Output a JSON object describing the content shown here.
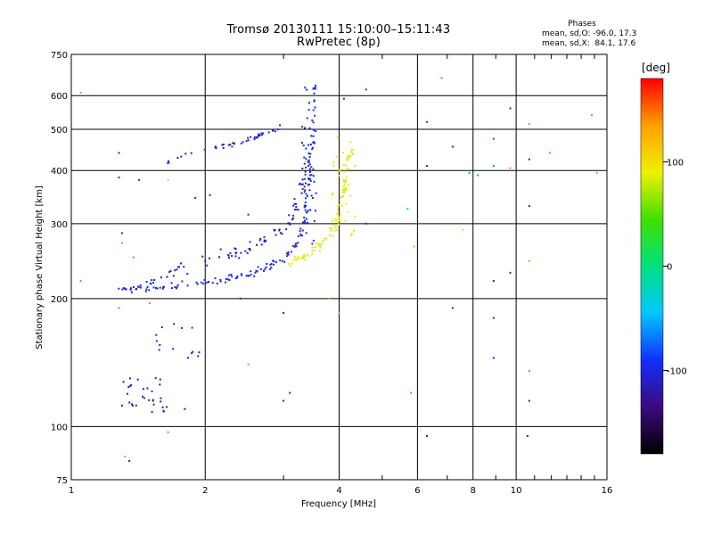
{
  "header": {
    "title_line1": "Tromsø 20130111 15:10:00–15:11:43",
    "title_line2": "RwPretec (8p)",
    "stats_title": "Phases",
    "stats_line1": "mean, sd,O: -96.0, 17.3",
    "stats_line2": "mean, sd,X:  84.1, 17.6"
  },
  "colorbar": {
    "title": "[deg]",
    "ticks": [
      "100",
      "0",
      "-100"
    ],
    "colors": [
      "#000000",
      "#3c0a7c",
      "#1030ff",
      "#00c8ff",
      "#00e080",
      "#40e000",
      "#f0f000",
      "#ffa000",
      "#ff0000"
    ]
  },
  "chart_data": {
    "type": "scatter",
    "xlabel": "Frequency [MHz]",
    "ylabel": "Stationary phase Virtual Height [km]",
    "x_scale": "log",
    "y_scale": "log",
    "xlim": [
      1,
      16
    ],
    "ylim": [
      75,
      750
    ],
    "grid": true,
    "x_ticks": [
      1,
      2,
      4,
      6,
      8,
      10,
      16
    ],
    "x_tick_labels": [
      "1",
      "2",
      "4",
      "6",
      "8",
      "10",
      "16"
    ],
    "x_minor_ticks": [
      3,
      5,
      7,
      9,
      11,
      12,
      13,
      14,
      15
    ],
    "y_ticks": [
      75,
      100,
      200,
      300,
      400,
      500,
      600,
      750
    ],
    "y_tick_labels": [
      "75",
      "100",
      "200",
      "300",
      "400",
      "500",
      "600",
      "750"
    ],
    "color_range_deg": [
      -180,
      180
    ],
    "colorbar_ticks": [
      100,
      0,
      -100
    ],
    "traces": [
      {
        "mode": "O",
        "phase": -100,
        "phase_jitter": 12,
        "count": 140,
        "kind": "curve",
        "points": [
          [
            1.3,
            210
          ],
          [
            1.5,
            212
          ],
          [
            1.7,
            214
          ],
          [
            2.0,
            218
          ],
          [
            2.3,
            223
          ],
          [
            2.6,
            230
          ],
          [
            2.9,
            242
          ],
          [
            3.1,
            255
          ],
          [
            3.25,
            275
          ],
          [
            3.35,
            310
          ],
          [
            3.42,
            380
          ],
          [
            3.46,
            470
          ],
          [
            3.5,
            620
          ]
        ],
        "x_spread": 0.02,
        "y_spread": 0.03
      },
      {
        "mode": "O",
        "phase": -110,
        "phase_jitter": 12,
        "count": 90,
        "kind": "curve",
        "points": [
          [
            1.45,
            215
          ],
          [
            1.7,
            232
          ],
          [
            2.0,
            245
          ],
          [
            2.3,
            255
          ],
          [
            2.6,
            265
          ],
          [
            2.9,
            285
          ],
          [
            3.1,
            305
          ],
          [
            3.25,
            335
          ],
          [
            3.35,
            380
          ],
          [
            3.4,
            450
          ]
        ],
        "x_spread": 0.03,
        "y_spread": 0.05
      },
      {
        "mode": "O",
        "phase": -100,
        "phase_jitter": 10,
        "count": 60,
        "kind": "band",
        "x": [
          3.28,
          3.55
        ],
        "y": [
          260,
          640
        ]
      },
      {
        "mode": "O",
        "phase": -105,
        "phase_jitter": 10,
        "count": 45,
        "kind": "curve",
        "points": [
          [
            1.65,
            420
          ],
          [
            1.8,
            440
          ],
          [
            2.0,
            450
          ],
          [
            2.2,
            455
          ],
          [
            2.4,
            465
          ],
          [
            2.6,
            480
          ],
          [
            2.8,
            495
          ],
          [
            2.95,
            505
          ]
        ],
        "x_spread": 0.02,
        "y_spread": 0.02
      },
      {
        "mode": "X",
        "phase": 85,
        "phase_jitter": 12,
        "count": 80,
        "kind": "curve",
        "points": [
          [
            3.0,
            243
          ],
          [
            3.2,
            248
          ],
          [
            3.4,
            255
          ],
          [
            3.6,
            265
          ],
          [
            3.8,
            280
          ],
          [
            3.95,
            300
          ],
          [
            4.05,
            330
          ],
          [
            4.15,
            380
          ],
          [
            4.25,
            450
          ]
        ],
        "x_spread": 0.025,
        "y_spread": 0.04
      },
      {
        "mode": "X",
        "phase": 90,
        "phase_jitter": 10,
        "count": 35,
        "kind": "band",
        "x": [
          3.85,
          4.35
        ],
        "y": [
          280,
          480
        ]
      },
      {
        "mode": "O",
        "phase": -110,
        "phase_jitter": 10,
        "count": 30,
        "kind": "band",
        "x": [
          1.3,
          1.65
        ],
        "y": [
          108,
          130
        ]
      },
      {
        "mode": "O",
        "phase": -100,
        "phase_jitter": 12,
        "count": 14,
        "kind": "band",
        "x": [
          1.55,
          1.95
        ],
        "y": [
          145,
          175
        ]
      }
    ],
    "scatter_points": [
      [
        1.05,
        610,
        140
      ],
      [
        1.05,
        220,
        150
      ],
      [
        1.28,
        440,
        -110
      ],
      [
        1.28,
        385,
        -110
      ],
      [
        1.42,
        380,
        -110
      ],
      [
        1.3,
        285,
        -100
      ],
      [
        1.3,
        270,
        30
      ],
      [
        1.38,
        250,
        150
      ],
      [
        1.28,
        190,
        150
      ],
      [
        1.5,
        195,
        150
      ],
      [
        1.65,
        380,
        110
      ],
      [
        1.9,
        345,
        -110
      ],
      [
        2.05,
        350,
        -110
      ],
      [
        2.5,
        315,
        -110
      ],
      [
        2.4,
        200,
        -110
      ],
      [
        3.0,
        185,
        -100
      ],
      [
        3.1,
        120,
        -110
      ],
      [
        3.8,
        200,
        140
      ],
      [
        4.0,
        185,
        140
      ],
      [
        4.1,
        590,
        -110
      ],
      [
        4.6,
        620,
        -80
      ],
      [
        4.6,
        300,
        -100
      ],
      [
        5.7,
        325,
        -30
      ],
      [
        5.9,
        265,
        130
      ],
      [
        6.3,
        520,
        -80
      ],
      [
        6.3,
        410,
        -110
      ],
      [
        6.8,
        660,
        150
      ],
      [
        7.2,
        455,
        -110
      ],
      [
        7.2,
        190,
        -110
      ],
      [
        7.6,
        290,
        100
      ],
      [
        7.85,
        395,
        -60
      ],
      [
        8.2,
        390,
        -60
      ],
      [
        8.9,
        475,
        -80
      ],
      [
        8.9,
        410,
        -60
      ],
      [
        8.9,
        220,
        -110
      ],
      [
        8.9,
        180,
        -90
      ],
      [
        8.9,
        145,
        -100
      ],
      [
        9.7,
        560,
        -110
      ],
      [
        9.7,
        405,
        140
      ],
      [
        9.7,
        230,
        -110
      ],
      [
        10.7,
        515,
        140
      ],
      [
        10.7,
        425,
        -110
      ],
      [
        10.7,
        330,
        -120
      ],
      [
        10.7,
        245,
        140
      ],
      [
        10.7,
        135,
        150
      ],
      [
        10.7,
        115,
        -110
      ],
      [
        10.6,
        95,
        -110
      ],
      [
        11.9,
        440,
        -50
      ],
      [
        14.8,
        540,
        -50
      ],
      [
        15.2,
        395,
        140
      ],
      [
        1.65,
        97,
        -50
      ],
      [
        1.32,
        85,
        140
      ],
      [
        1.35,
        83,
        -110
      ],
      [
        1.3,
        112,
        -110
      ],
      [
        1.8,
        110,
        -130
      ],
      [
        5.8,
        120,
        -40
      ],
      [
        6.3,
        95,
        -110
      ],
      [
        2.5,
        140,
        140
      ],
      [
        3.0,
        115,
        -110
      ]
    ]
  }
}
